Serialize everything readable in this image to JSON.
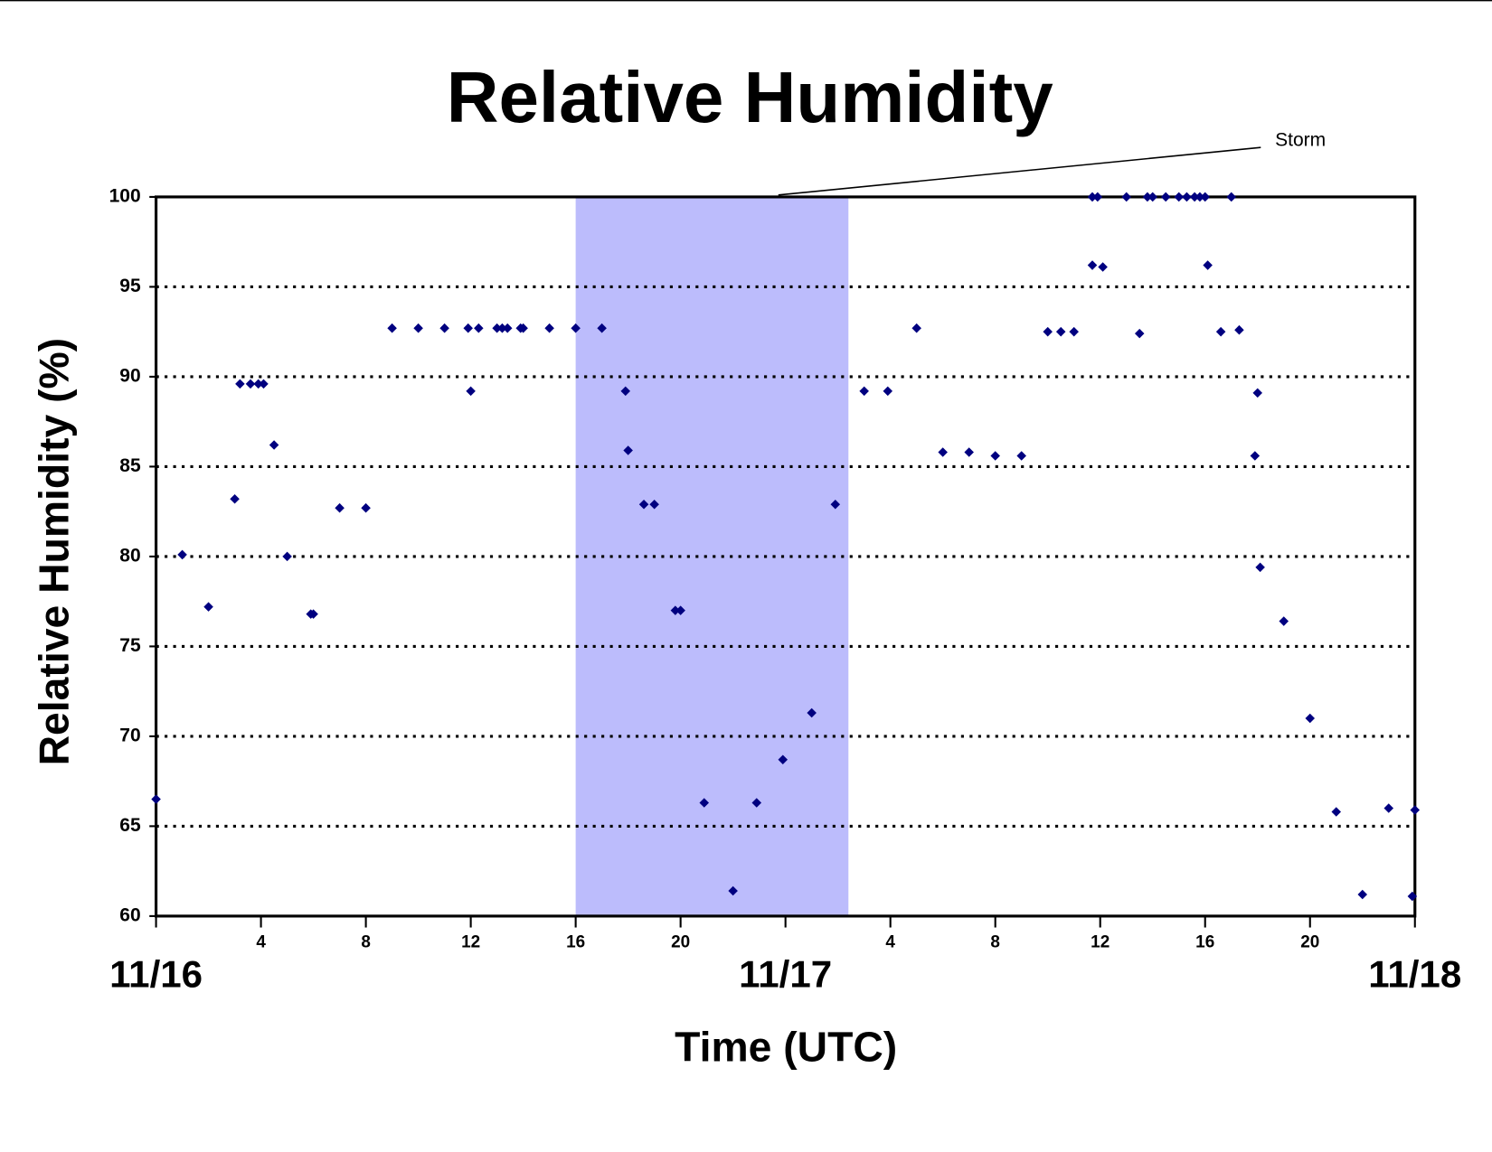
{
  "chart_data": {
    "type": "scatter",
    "title": "Relative Humidity",
    "x_label": "Time (UTC)",
    "y_label": "Relative Humidity (%)",
    "color": "#000080",
    "shade_color": "#bcbcfc",
    "shaded_region": [
      16,
      26.4
    ],
    "annotations": [
      {
        "text": "Storm"
      }
    ],
    "xlim": [
      0,
      48
    ],
    "ylim": [
      60,
      100
    ],
    "xticks": [
      {
        "value": 0,
        "label": "11/16"
      },
      4,
      8,
      12,
      16,
      20,
      {
        "value": 24,
        "label": "11/17"
      },
      {
        "value": 28,
        "label": "4"
      },
      {
        "value": 32,
        "label": "8"
      },
      {
        "value": 36,
        "label": "12"
      },
      {
        "value": 40,
        "label": "16"
      },
      {
        "value": 44,
        "label": "20"
      },
      {
        "value": 48,
        "label": "11/18"
      }
    ],
    "yticks": [
      60,
      65,
      70,
      75,
      80,
      85,
      90,
      95,
      100
    ],
    "grid": true,
    "x": [
      0,
      1.0,
      2.0,
      3.0,
      3.2,
      3.6,
      3.9,
      4.1,
      4.5,
      5.0,
      5.9,
      6.0,
      7.0,
      8.0,
      9.0,
      10.0,
      11.0,
      11.9,
      12.0,
      12.3,
      13.0,
      13.2,
      13.4,
      13.9,
      14.0,
      15.0,
      16.0,
      17.0,
      17.9,
      18.0,
      18.6,
      19.0,
      19.8,
      20.0,
      20.9,
      22.0,
      22.9,
      23.9,
      25.0,
      25.9,
      27.0,
      27.9,
      29.0,
      30.0,
      31.0,
      32.0,
      33.0,
      34.0,
      34.5,
      35.0,
      35.7,
      35.9,
      35.7,
      36.1,
      37.0,
      37.5,
      37.8,
      38.0,
      38.5,
      39.0,
      39.3,
      39.6,
      39.8,
      40.0,
      40.1,
      40.6,
      41.0,
      41.3,
      41.9,
      42.0,
      42.1,
      43.0,
      44.0,
      45.0,
      46.0,
      47.0,
      47.9,
      48.0
    ],
    "values": [
      66.5,
      80.1,
      77.2,
      83.2,
      89.6,
      89.6,
      89.6,
      89.6,
      86.2,
      80.0,
      76.8,
      76.8,
      82.7,
      82.7,
      92.7,
      92.7,
      92.7,
      92.7,
      89.2,
      92.7,
      92.7,
      92.7,
      92.7,
      92.7,
      92.7,
      92.7,
      92.7,
      92.7,
      89.2,
      85.9,
      82.9,
      82.9,
      77.0,
      77.0,
      66.3,
      61.4,
      66.3,
      68.7,
      71.3,
      82.9,
      89.2,
      89.2,
      92.7,
      85.8,
      85.8,
      85.6,
      85.6,
      92.5,
      92.5,
      92.5,
      100,
      100,
      96.2,
      96.1,
      100,
      92.4,
      100,
      100,
      100,
      100,
      100,
      100,
      100,
      100,
      96.2,
      92.5,
      100,
      92.6,
      85.6,
      89.1,
      79.4,
      76.4,
      71.0,
      65.8,
      61.2,
      66.0,
      61.1,
      65.9
    ]
  }
}
